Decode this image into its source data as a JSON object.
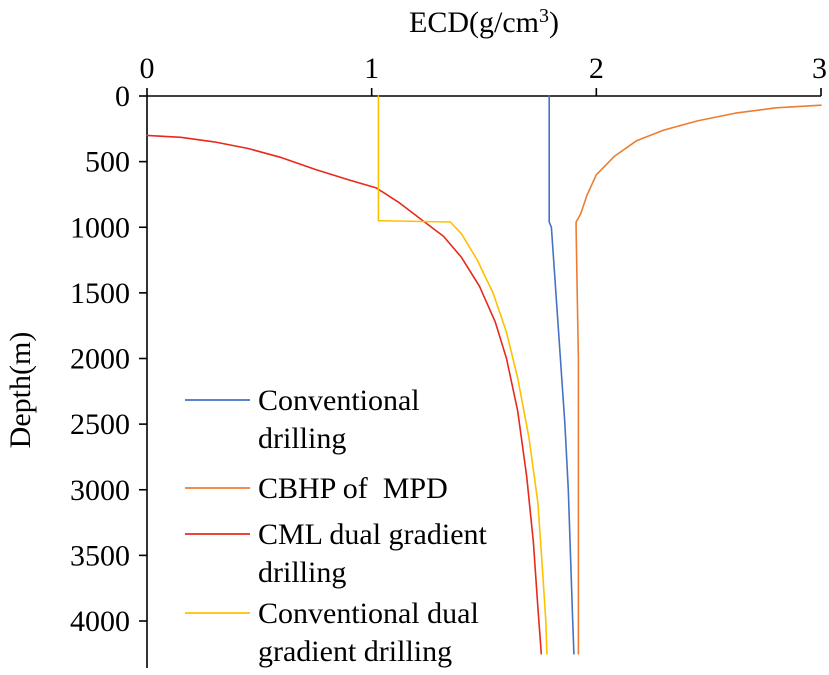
{
  "chart_data": {
    "type": "line",
    "title": "",
    "xlabel_main": "ECD(g/cm",
    "xlabel_sup": "3",
    "xlabel_close": ")",
    "ylabel": "Depth(m)",
    "xlim": [
      0,
      3
    ],
    "ylim": [
      0,
      4250
    ],
    "x_axis_position": "top",
    "y_axis_inverted": true,
    "grid": false,
    "legend_position": "bottom-left",
    "xticks": [
      {
        "value": 0,
        "label": "0"
      },
      {
        "value": 1,
        "label": "1"
      },
      {
        "value": 2,
        "label": "2"
      },
      {
        "value": 3,
        "label": "3"
      }
    ],
    "yticks": [
      {
        "value": 0,
        "label": "0"
      },
      {
        "value": 500,
        "label": "500"
      },
      {
        "value": 1000,
        "label": "1000"
      },
      {
        "value": 1500,
        "label": "1500"
      },
      {
        "value": 2000,
        "label": "2000"
      },
      {
        "value": 2500,
        "label": "2500"
      },
      {
        "value": 3000,
        "label": "3000"
      },
      {
        "value": 3500,
        "label": "3500"
      },
      {
        "value": 4000,
        "label": "4000"
      }
    ],
    "series": [
      {
        "name": "Conventional drilling",
        "legend_lines": [
          "Conventional",
          "drilling"
        ],
        "color": "#4472C4",
        "points": [
          [
            1.79,
            0
          ],
          [
            1.79,
            960
          ],
          [
            1.8,
            1000
          ],
          [
            1.82,
            1500
          ],
          [
            1.84,
            2000
          ],
          [
            1.86,
            2500
          ],
          [
            1.875,
            3000
          ],
          [
            1.885,
            3500
          ],
          [
            1.895,
            4000
          ],
          [
            1.9,
            4250
          ]
        ]
      },
      {
        "name": "CBHP of MPD",
        "legend_lines": [
          "CBHP of  MPD"
        ],
        "color": "#ED7D31",
        "points": [
          [
            3.0,
            70
          ],
          [
            2.8,
            90
          ],
          [
            2.62,
            130
          ],
          [
            2.45,
            190
          ],
          [
            2.3,
            260
          ],
          [
            2.18,
            340
          ],
          [
            2.08,
            460
          ],
          [
            2.0,
            600
          ],
          [
            1.96,
            750
          ],
          [
            1.93,
            900
          ],
          [
            1.91,
            960
          ],
          [
            1.91,
            1000
          ],
          [
            1.915,
            1500
          ],
          [
            1.92,
            2000
          ],
          [
            1.92,
            2500
          ],
          [
            1.92,
            3000
          ],
          [
            1.92,
            3500
          ],
          [
            1.92,
            4000
          ],
          [
            1.92,
            4250
          ]
        ]
      },
      {
        "name": "CML dual gradient drilling",
        "legend_lines": [
          "CML dual gradient",
          "drilling"
        ],
        "color": "#E8291C",
        "points": [
          [
            0.0,
            300
          ],
          [
            0.15,
            315
          ],
          [
            0.3,
            350
          ],
          [
            0.45,
            400
          ],
          [
            0.6,
            470
          ],
          [
            0.75,
            560
          ],
          [
            0.9,
            640
          ],
          [
            1.02,
            700
          ],
          [
            1.12,
            810
          ],
          [
            1.22,
            940
          ],
          [
            1.32,
            1070
          ],
          [
            1.4,
            1230
          ],
          [
            1.48,
            1450
          ],
          [
            1.55,
            1720
          ],
          [
            1.6,
            2000
          ],
          [
            1.65,
            2400
          ],
          [
            1.69,
            2900
          ],
          [
            1.72,
            3400
          ],
          [
            1.74,
            3900
          ],
          [
            1.755,
            4250
          ]
        ]
      },
      {
        "name": "Conventional dual gradient drilling",
        "legend_lines": [
          "Conventional dual",
          "gradient drilling"
        ],
        "color": "#FFC000",
        "points": [
          [
            1.03,
            0
          ],
          [
            1.03,
            950
          ],
          [
            1.35,
            960
          ],
          [
            1.4,
            1050
          ],
          [
            1.47,
            1250
          ],
          [
            1.54,
            1500
          ],
          [
            1.6,
            1800
          ],
          [
            1.65,
            2150
          ],
          [
            1.7,
            2600
          ],
          [
            1.74,
            3100
          ],
          [
            1.76,
            3600
          ],
          [
            1.775,
            4000
          ],
          [
            1.78,
            4250
          ]
        ]
      }
    ]
  }
}
